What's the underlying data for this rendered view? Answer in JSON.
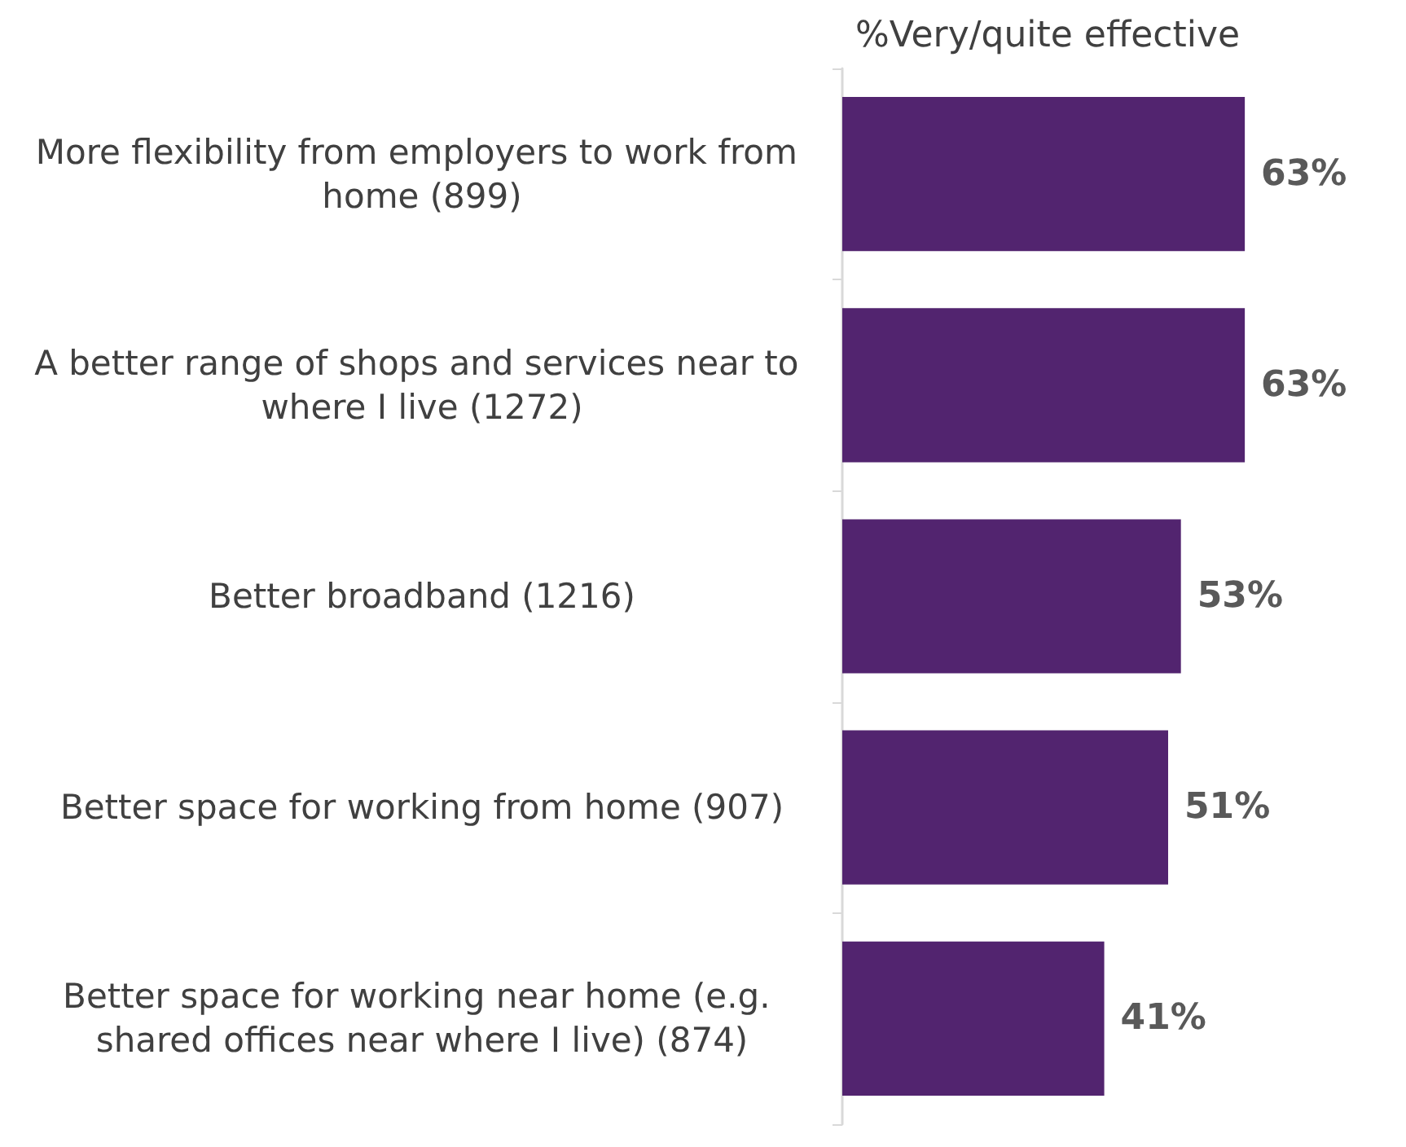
{
  "chart_data": {
    "type": "bar",
    "orientation": "horizontal",
    "title": "%Very/quite effective",
    "categories": [
      "More flexibility from employers to work from home (899)",
      "A better range of shops and services near to where I live (1272)",
      "Better broadband (1216)",
      "Better space for working from home (907)",
      "Better space for working near home (e.g. shared offices near where I live) (874)"
    ],
    "values": [
      63,
      63,
      53,
      51,
      41
    ],
    "color": "#52246f",
    "data_labels": true,
    "value_labels": [
      "63%",
      "63%",
      "53%",
      "51%",
      "41%"
    ]
  }
}
